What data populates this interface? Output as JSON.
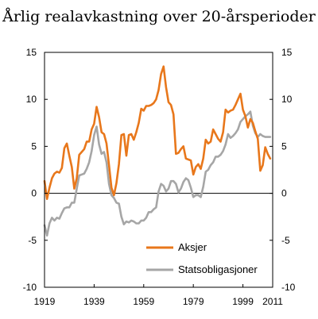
{
  "chart_data": {
    "type": "line",
    "title": "Årlig realavkastning over 20-årsperioder",
    "xlabel": "",
    "ylabel": "",
    "xlim": [
      1919,
      2011
    ],
    "ylim": [
      -10,
      15
    ],
    "grid": false,
    "legend_position": "bottom-right",
    "x_ticks": [
      "1919",
      "1939",
      "1959",
      "1979",
      "1999",
      "2011"
    ],
    "y_ticks_left": [
      "15",
      "10",
      "5",
      "0",
      "-5",
      "-10"
    ],
    "y_ticks_right": [
      "15",
      "10",
      "5",
      "0",
      "-5",
      "-10"
    ],
    "series": [
      {
        "name": "Aksjer",
        "color": "#e8771b",
        "points": [
          [
            1919,
            1.3
          ],
          [
            1920,
            -0.6
          ],
          [
            1921,
            0.6
          ],
          [
            1922,
            1.6
          ],
          [
            1923,
            2.1
          ],
          [
            1924,
            2.3
          ],
          [
            1925,
            2.2
          ],
          [
            1926,
            2.7
          ],
          [
            1927,
            4.8
          ],
          [
            1928,
            5.3
          ],
          [
            1929,
            4.0
          ],
          [
            1930,
            2.8
          ],
          [
            1931,
            0.5
          ],
          [
            1932,
            1.6
          ],
          [
            1933,
            4.1
          ],
          [
            1934,
            4.4
          ],
          [
            1935,
            4.7
          ],
          [
            1936,
            5.5
          ],
          [
            1937,
            5.5
          ],
          [
            1938,
            6.8
          ],
          [
            1939,
            7.4
          ],
          [
            1940,
            9.2
          ],
          [
            1941,
            8.1
          ],
          [
            1942,
            6.5
          ],
          [
            1943,
            6.3
          ],
          [
            1944,
            5.3
          ],
          [
            1945,
            3.0
          ],
          [
            1946,
            0.6
          ],
          [
            1947,
            -0.2
          ],
          [
            1948,
            1.1
          ],
          [
            1949,
            3.1
          ],
          [
            1950,
            6.2
          ],
          [
            1951,
            6.3
          ],
          [
            1952,
            4.0
          ],
          [
            1953,
            6.2
          ],
          [
            1954,
            6.3
          ],
          [
            1955,
            5.7
          ],
          [
            1956,
            6.5
          ],
          [
            1957,
            7.5
          ],
          [
            1958,
            9.0
          ],
          [
            1959,
            8.8
          ],
          [
            1960,
            9.3
          ],
          [
            1961,
            9.3
          ],
          [
            1962,
            9.4
          ],
          [
            1963,
            9.6
          ],
          [
            1964,
            10.0
          ],
          [
            1965,
            11.0
          ],
          [
            1966,
            12.7
          ],
          [
            1967,
            13.5
          ],
          [
            1968,
            11.3
          ],
          [
            1969,
            9.7
          ],
          [
            1970,
            9.4
          ],
          [
            1971,
            8.4
          ],
          [
            1972,
            4.2
          ],
          [
            1973,
            4.3
          ],
          [
            1974,
            4.7
          ],
          [
            1975,
            5.0
          ],
          [
            1976,
            3.7
          ],
          [
            1977,
            3.6
          ],
          [
            1978,
            3.5
          ],
          [
            1979,
            2.0
          ],
          [
            1980,
            2.8
          ],
          [
            1981,
            3.1
          ],
          [
            1982,
            2.6
          ],
          [
            1983,
            3.7
          ],
          [
            1984,
            5.7
          ],
          [
            1985,
            5.3
          ],
          [
            1986,
            5.5
          ],
          [
            1987,
            6.8
          ],
          [
            1988,
            6.3
          ],
          [
            1989,
            5.8
          ],
          [
            1990,
            5.5
          ],
          [
            1991,
            6.5
          ],
          [
            1992,
            8.9
          ],
          [
            1993,
            8.6
          ],
          [
            1994,
            8.8
          ],
          [
            1995,
            8.9
          ],
          [
            1996,
            9.4
          ],
          [
            1997,
            10.0
          ],
          [
            1998,
            10.6
          ],
          [
            1999,
            8.9
          ],
          [
            2000,
            8.2
          ],
          [
            2001,
            7.0
          ],
          [
            2002,
            7.9
          ],
          [
            2003,
            7.5
          ],
          [
            2004,
            6.6
          ],
          [
            2005,
            5.8
          ],
          [
            2006,
            2.4
          ],
          [
            2007,
            3.0
          ],
          [
            2008,
            4.9
          ],
          [
            2009,
            4.2
          ],
          [
            2010,
            3.7
          ]
        ]
      },
      {
        "name": "Statsobligasjoner",
        "color": "#a6a6a6",
        "points": [
          [
            1919,
            -3.4
          ],
          [
            1920,
            -4.5
          ],
          [
            1921,
            -3.2
          ],
          [
            1922,
            -2.6
          ],
          [
            1923,
            -2.9
          ],
          [
            1924,
            -2.6
          ],
          [
            1925,
            -2.7
          ],
          [
            1926,
            -2.1
          ],
          [
            1927,
            -1.6
          ],
          [
            1928,
            -1.5
          ],
          [
            1929,
            -1.5
          ],
          [
            1930,
            -1.0
          ],
          [
            1931,
            -1.0
          ],
          [
            1932,
            0.5
          ],
          [
            1933,
            1.9
          ],
          [
            1934,
            2.0
          ],
          [
            1935,
            2.1
          ],
          [
            1936,
            2.6
          ],
          [
            1937,
            3.3
          ],
          [
            1938,
            4.5
          ],
          [
            1939,
            6.2
          ],
          [
            1940,
            7.1
          ],
          [
            1941,
            5.2
          ],
          [
            1942,
            4.2
          ],
          [
            1943,
            4.4
          ],
          [
            1944,
            3.3
          ],
          [
            1945,
            1.0
          ],
          [
            1946,
            -0.2
          ],
          [
            1947,
            -0.5
          ],
          [
            1948,
            -1.0
          ],
          [
            1949,
            -1.1
          ],
          [
            1950,
            -2.5
          ],
          [
            1951,
            -3.3
          ],
          [
            1952,
            -3.0
          ],
          [
            1953,
            -3.1
          ],
          [
            1954,
            -2.9
          ],
          [
            1955,
            -3.0
          ],
          [
            1956,
            -3.2
          ],
          [
            1957,
            -3.2
          ],
          [
            1958,
            -2.9
          ],
          [
            1959,
            -2.9
          ],
          [
            1960,
            -2.6
          ],
          [
            1961,
            -2.0
          ],
          [
            1962,
            -2.0
          ],
          [
            1963,
            -1.7
          ],
          [
            1964,
            -1.5
          ],
          [
            1965,
            0.2
          ],
          [
            1966,
            1.0
          ],
          [
            1967,
            0.8
          ],
          [
            1968,
            0.2
          ],
          [
            1969,
            0.5
          ],
          [
            1970,
            1.3
          ],
          [
            1971,
            1.3
          ],
          [
            1972,
            1.0
          ],
          [
            1973,
            0.1
          ],
          [
            1974,
            0.5
          ],
          [
            1975,
            1.2
          ],
          [
            1976,
            1.6
          ],
          [
            1977,
            1.4
          ],
          [
            1978,
            0.6
          ],
          [
            1979,
            -0.4
          ],
          [
            1980,
            -0.2
          ],
          [
            1981,
            -0.2
          ],
          [
            1982,
            -0.4
          ],
          [
            1983,
            0.7
          ],
          [
            1984,
            2.3
          ],
          [
            1985,
            2.5
          ],
          [
            1986,
            3.0
          ],
          [
            1987,
            3.3
          ],
          [
            1988,
            3.9
          ],
          [
            1989,
            3.9
          ],
          [
            1990,
            4.1
          ],
          [
            1991,
            4.5
          ],
          [
            1992,
            5.2
          ],
          [
            1993,
            6.3
          ],
          [
            1994,
            5.9
          ],
          [
            1995,
            6.1
          ],
          [
            1996,
            6.4
          ],
          [
            1997,
            6.8
          ],
          [
            1998,
            7.6
          ],
          [
            1999,
            7.9
          ],
          [
            2000,
            8.2
          ],
          [
            2001,
            8.4
          ],
          [
            2002,
            8.7
          ],
          [
            2003,
            7.2
          ],
          [
            2004,
            6.4
          ],
          [
            2005,
            6.0
          ],
          [
            2006,
            6.3
          ],
          [
            2007,
            6.1
          ],
          [
            2008,
            6.0
          ],
          [
            2009,
            6.0
          ],
          [
            2010,
            6.0
          ]
        ]
      }
    ]
  }
}
